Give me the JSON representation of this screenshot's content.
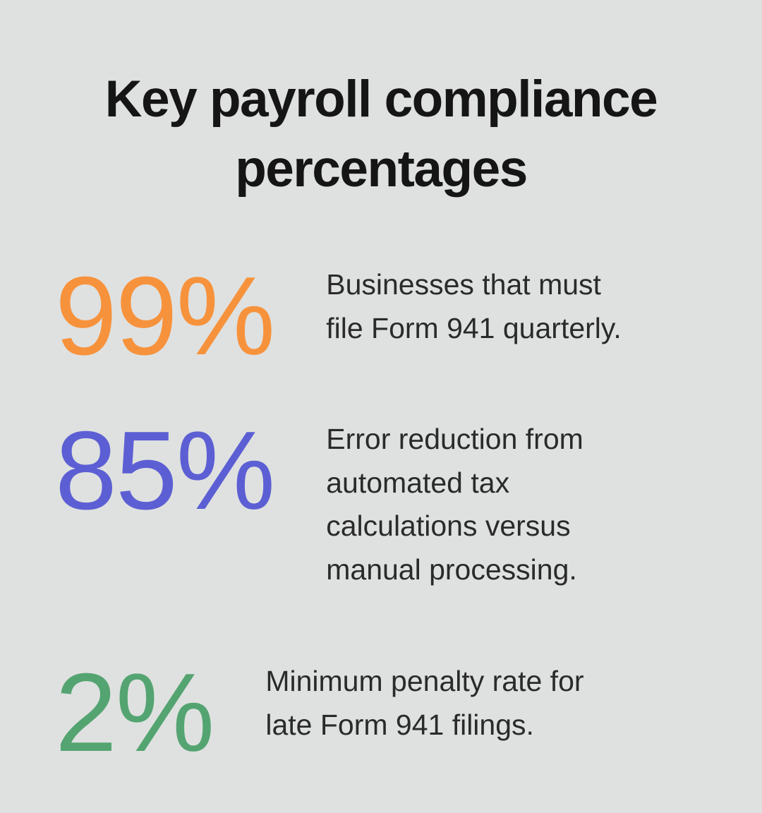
{
  "background_color": "#dfe1e0",
  "title": "Key payroll compliance\npercentages",
  "stats": [
    {
      "value": "99%",
      "color": "#f7923c",
      "description": "Businesses that must\nfile Form 941 quarterly."
    },
    {
      "value": "85%",
      "color": "#5c5fd3",
      "description": "Error reduction from\nautomated tax\ncalculations versus\nmanual processing."
    },
    {
      "value": "2%",
      "color": "#54a471",
      "description": "Minimum penalty rate for\nlate Form 941 filings."
    }
  ],
  "chart_data": {
    "type": "table",
    "title": "Key payroll compliance percentages",
    "categories": [
      "Businesses that must file Form 941 quarterly.",
      "Error reduction from automated tax calculations versus manual processing.",
      "Minimum penalty rate for late Form 941 filings."
    ],
    "values": [
      99,
      85,
      2
    ],
    "unit": "%",
    "colors": [
      "#f7923c",
      "#5c5fd3",
      "#54a471"
    ],
    "legend_position": "none",
    "grid": false
  }
}
